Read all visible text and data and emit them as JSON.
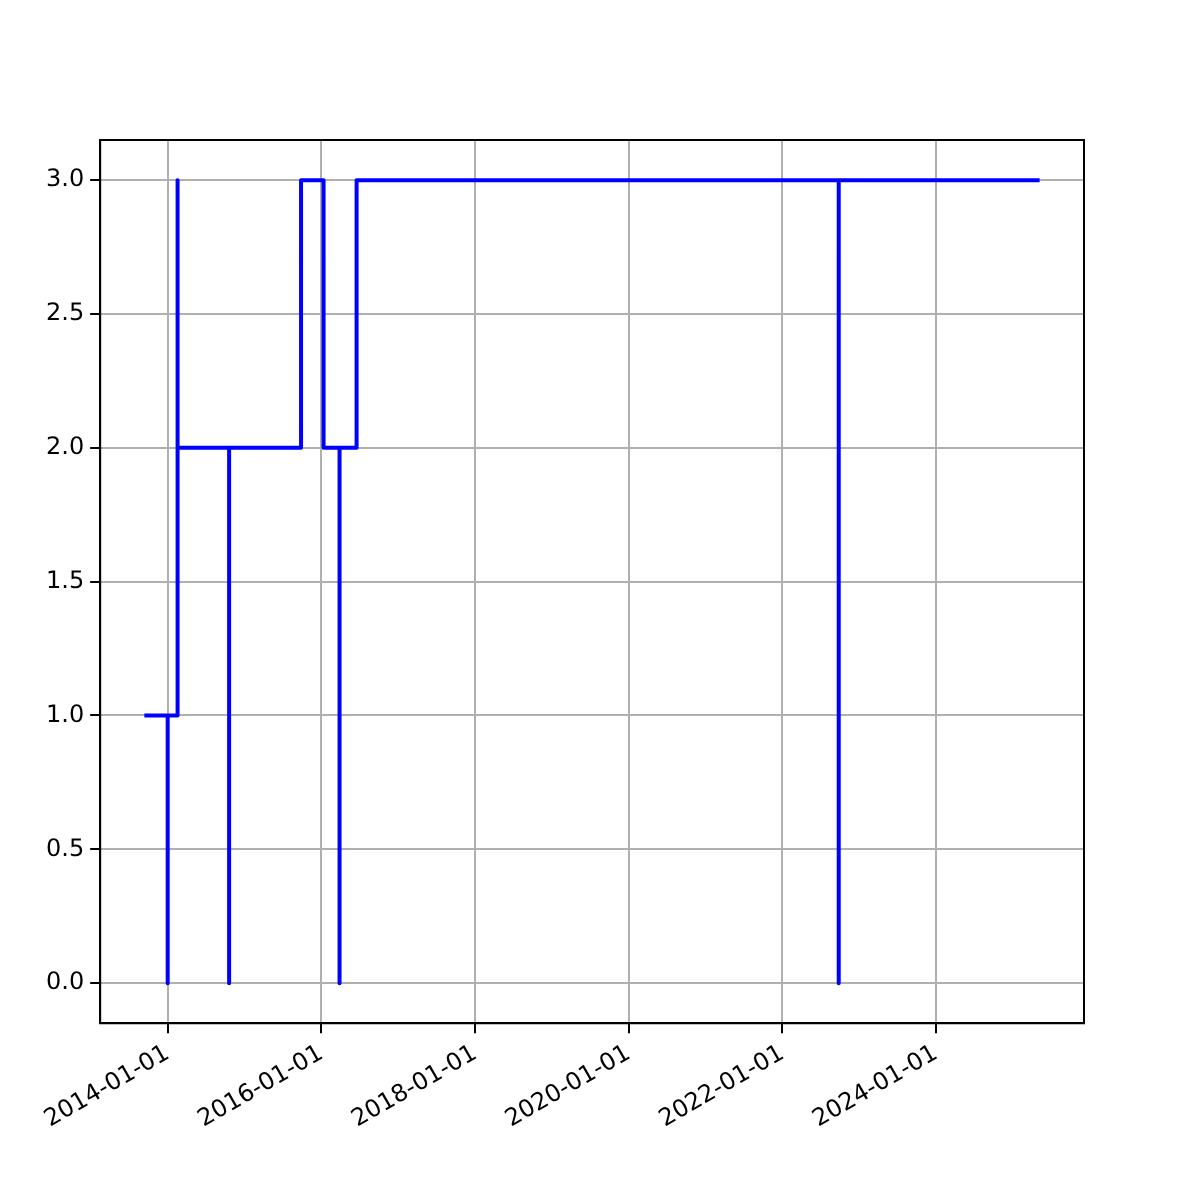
{
  "chart_data": {
    "type": "step",
    "x": [
      "2013-09-12",
      "2014-01-01",
      "2014-01-01",
      "2014-02-17",
      "2014-02-17",
      "2014-10-20",
      "2014-10-20",
      "2015-09-27",
      "2016-01-12",
      "2016-03-28",
      "2016-03-28",
      "2016-06-17",
      "2022-09-26",
      "2022-09-26",
      "2025-05-08"
    ],
    "series": [
      {
        "color": "#0000ff",
        "values": [
          1,
          0,
          1,
          3,
          2,
          0,
          2,
          3,
          2,
          0,
          2,
          3,
          0,
          3,
          3
        ]
      }
    ],
    "xlim": [
      "2013-02-14",
      "2025-12-05"
    ],
    "xticks": [
      "2014-01-01",
      "2016-01-01",
      "2018-01-01",
      "2020-01-01",
      "2022-01-01",
      "2024-01-01"
    ],
    "ylim": [
      -0.15,
      3.15
    ],
    "yticks": [
      {
        "value": 0,
        "label": "0.0"
      },
      {
        "value": 0.5,
        "label": "0.5"
      },
      {
        "value": 1,
        "label": "1.0"
      },
      {
        "value": 1.5,
        "label": "1.5"
      },
      {
        "value": 2,
        "label": "2.0"
      },
      {
        "value": 2.5,
        "label": "2.5"
      },
      {
        "value": 3,
        "label": "3.0"
      }
    ],
    "grid": true
  }
}
